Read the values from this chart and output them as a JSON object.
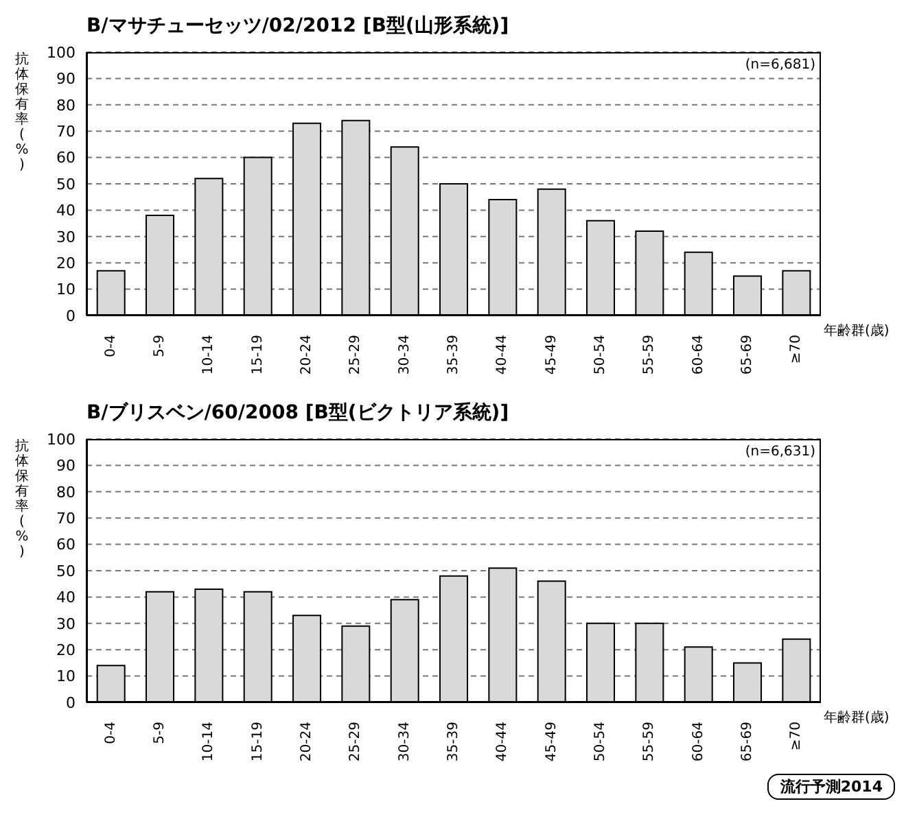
{
  "chart_data": [
    {
      "type": "bar",
      "title": "B/マサチューセッツ/02/2012 [B型(山形系統)]",
      "ylabel": "抗体保有率(%)",
      "xlabel": "年齢群(歳)",
      "annotations": [
        "(n=6,681)"
      ],
      "categories": [
        "0-4",
        "5-9",
        "10-14",
        "15-19",
        "20-24",
        "25-29",
        "30-34",
        "35-39",
        "40-44",
        "45-49",
        "50-54",
        "55-59",
        "60-64",
        "65-69",
        "≥70"
      ],
      "values": [
        17,
        38,
        52,
        60,
        73,
        74,
        64,
        50,
        44,
        48,
        36,
        32,
        24,
        15,
        17
      ],
      "color": "#d9d9d9",
      "ylim": [
        0,
        100
      ],
      "yticks": [
        0,
        10,
        20,
        30,
        40,
        50,
        60,
        70,
        80,
        90,
        100
      ],
      "grid": "y"
    },
    {
      "type": "bar",
      "title": "B/ブリスベン/60/2008 [B型(ビクトリア系統)]",
      "ylabel": "抗体保有率(%)",
      "xlabel": "年齢群(歳)",
      "annotations": [
        "(n=6,631)",
        "流行予測2014"
      ],
      "categories": [
        "0-4",
        "5-9",
        "10-14",
        "15-19",
        "20-24",
        "25-29",
        "30-34",
        "35-39",
        "40-44",
        "45-49",
        "50-54",
        "55-59",
        "60-64",
        "65-69",
        "≥70"
      ],
      "values": [
        14,
        42,
        43,
        42,
        33,
        29,
        39,
        48,
        51,
        46,
        30,
        30,
        21,
        15,
        24
      ],
      "color": "#d9d9d9",
      "ylim": [
        0,
        100
      ],
      "yticks": [
        0,
        10,
        20,
        30,
        40,
        50,
        60,
        70,
        80,
        90,
        100
      ],
      "grid": "y"
    }
  ]
}
